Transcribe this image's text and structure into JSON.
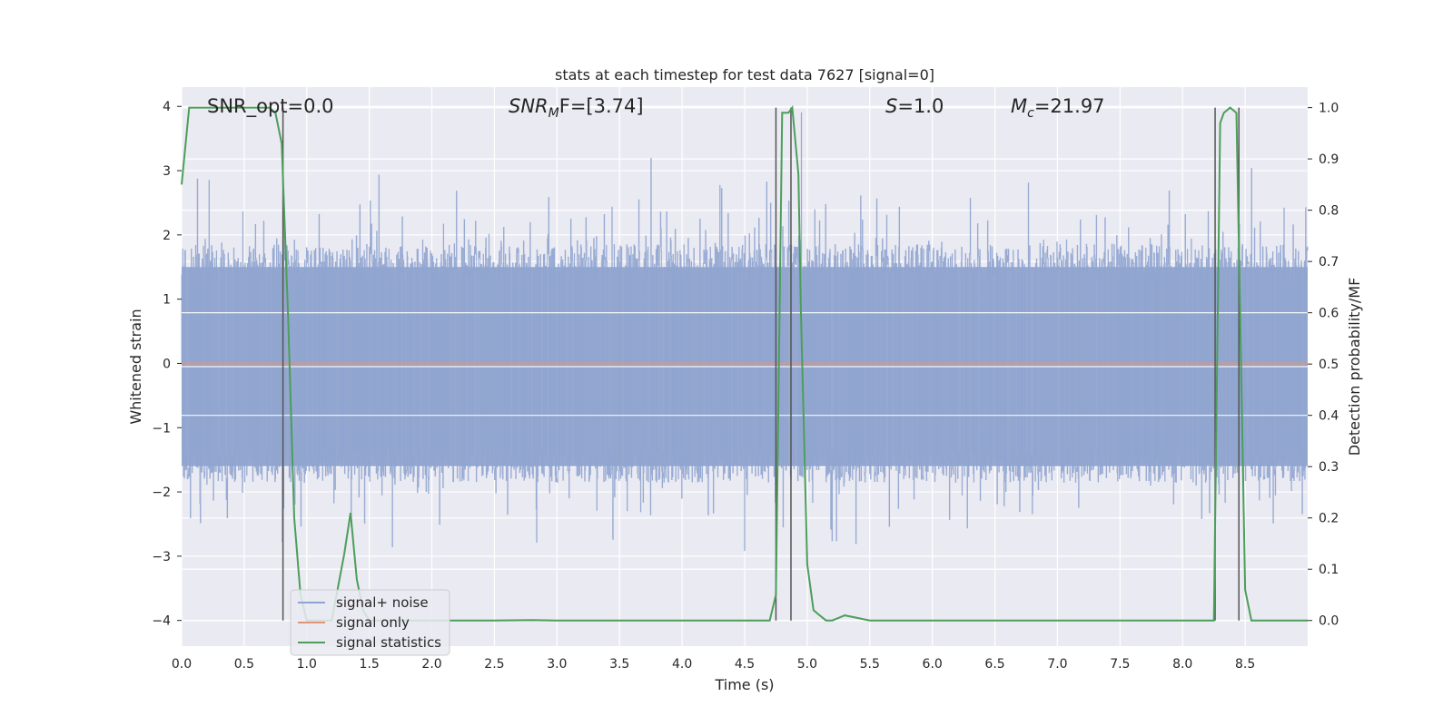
{
  "chart_data": {
    "type": "line",
    "title": "stats at each timestep for test data 7627 [signal=0]",
    "xlabel": "Time (s)",
    "ylabel": "Whitened strain",
    "y2label": "Detection probability/MF",
    "xlim": [
      0.0,
      9.0
    ],
    "ylim": [
      -4.4,
      4.3
    ],
    "y2lim": [
      -0.05,
      1.04
    ],
    "xticks": [
      "0.0",
      "0.5",
      "1.0",
      "1.5",
      "2.0",
      "2.5",
      "3.0",
      "3.5",
      "4.0",
      "4.5",
      "5.0",
      "5.5",
      "6.0",
      "6.5",
      "7.0",
      "7.5",
      "8.0",
      "8.5"
    ],
    "yticks": [
      "4",
      "3",
      "2",
      "1",
      "0",
      "−1",
      "−2",
      "−3",
      "−4"
    ],
    "y2ticks": [
      "1.0",
      "0.9",
      "0.8",
      "0.7",
      "0.6",
      "0.5",
      "0.4",
      "0.3",
      "0.2",
      "0.1",
      "0.0"
    ],
    "grid": true,
    "legend_position": "lower-left",
    "annotations": {
      "snr_opt": "SNR_opt=0.0",
      "snr_mf_prefix": "SNR",
      "snr_mf_sub": "M",
      "snr_mf_suffix": "F=[3.74]",
      "s_var": "S",
      "s_val": "=1.0",
      "mc_var": "M",
      "mc_sub": "c",
      "mc_val": "=21.97"
    },
    "series": [
      {
        "name": "signal+ noise",
        "color": "#8fa4cf",
        "kind": "noise",
        "approx_std": 1.0,
        "y_range": [
          -4.0,
          3.9
        ]
      },
      {
        "name": "signal only",
        "color": "#e09479",
        "kind": "flat",
        "value": 0.0
      },
      {
        "name": "signal statistics",
        "color": "#4c9e5a",
        "axis": "right",
        "x": [
          0.0,
          0.06,
          0.1,
          0.2,
          0.3,
          0.4,
          0.5,
          0.6,
          0.7,
          0.75,
          0.8,
          0.85,
          0.9,
          0.95,
          1.0,
          1.1,
          1.2,
          1.3,
          1.35,
          1.4,
          1.45,
          1.5,
          1.6,
          2.0,
          2.5,
          2.8,
          3.0,
          3.5,
          4.0,
          4.5,
          4.7,
          4.75,
          4.8,
          4.85,
          4.88,
          4.93,
          4.95,
          5.0,
          5.05,
          5.1,
          5.15,
          5.2,
          5.25,
          5.3,
          5.4,
          5.5,
          6.0,
          7.0,
          8.0,
          8.2,
          8.25,
          8.3,
          8.33,
          8.38,
          8.43,
          8.46,
          8.5,
          8.55,
          9.0
        ],
        "y": [
          0.85,
          1.0,
          1.0,
          1.0,
          1.0,
          1.0,
          1.0,
          1.0,
          1.0,
          0.99,
          0.93,
          0.6,
          0.2,
          0.05,
          0.0,
          0.0,
          0.0,
          0.13,
          0.21,
          0.08,
          0.02,
          0.0,
          0.0,
          0.0,
          0.0,
          0.001,
          0.0,
          0.0,
          0.0,
          0.0,
          0.0,
          0.05,
          0.99,
          0.99,
          1.0,
          0.87,
          0.6,
          0.11,
          0.02,
          0.01,
          0.0,
          0.0,
          0.005,
          0.01,
          0.005,
          0.0,
          0.0,
          0.0,
          0.0,
          0.0,
          0.0,
          0.97,
          0.99,
          1.0,
          0.99,
          0.6,
          0.06,
          0.0,
          0.0
        ]
      }
    ],
    "vlines": [
      0.81,
      4.75,
      4.87,
      8.26,
      8.45
    ],
    "colors": {
      "plot_bg": "#eaeaf2",
      "grid": "#ffffff",
      "vline": "#555555"
    }
  }
}
